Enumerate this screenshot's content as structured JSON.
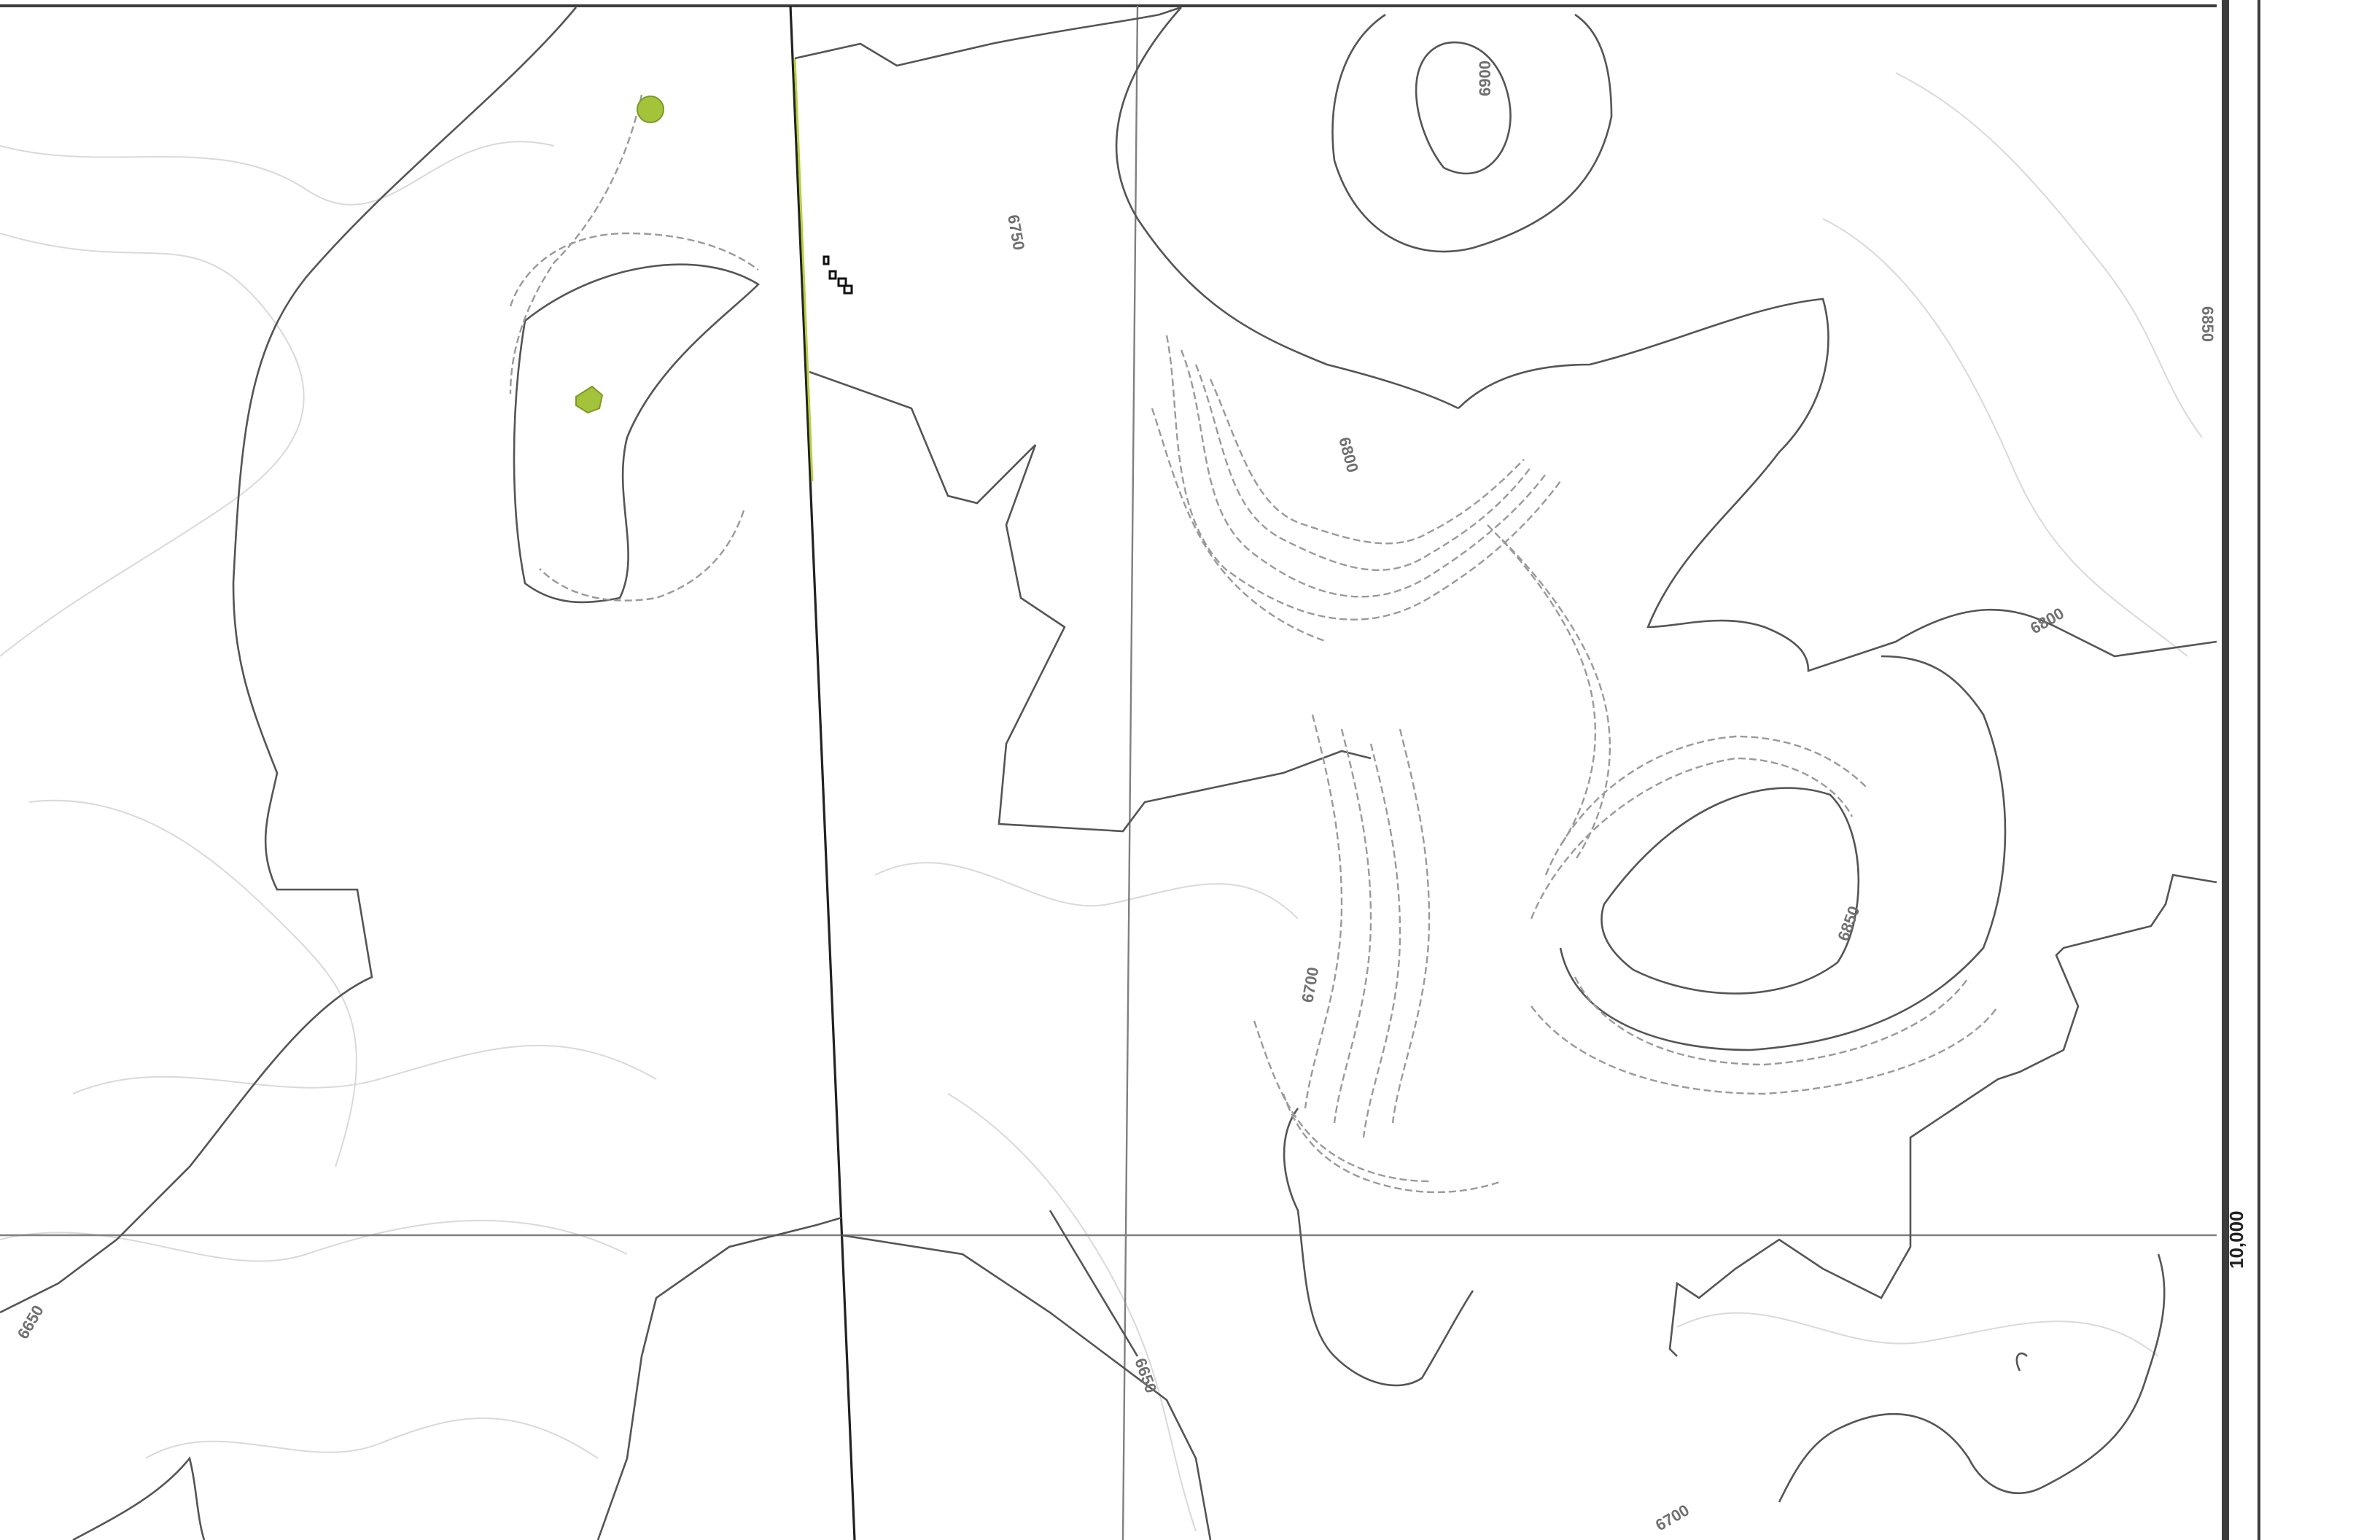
{
  "map": {
    "grid_label": "10,000",
    "contour_labels": {
      "c6650_left": "6650",
      "c6650_bottom": "6650",
      "c6650_right": "6850",
      "c6700_mid": "6700",
      "c6700_bottom": "6700",
      "c6750_top": "6750",
      "c6800_mid": "6800",
      "c6800_right": "6800",
      "c6850_peak": "6850",
      "c6900_peak": "6900"
    },
    "colors": {
      "background": "#ffffff",
      "contour": "#555555",
      "grid": "#808080",
      "marker": "#a3c43a"
    },
    "icons": [
      "green-marker-icon",
      "building-icon"
    ]
  }
}
